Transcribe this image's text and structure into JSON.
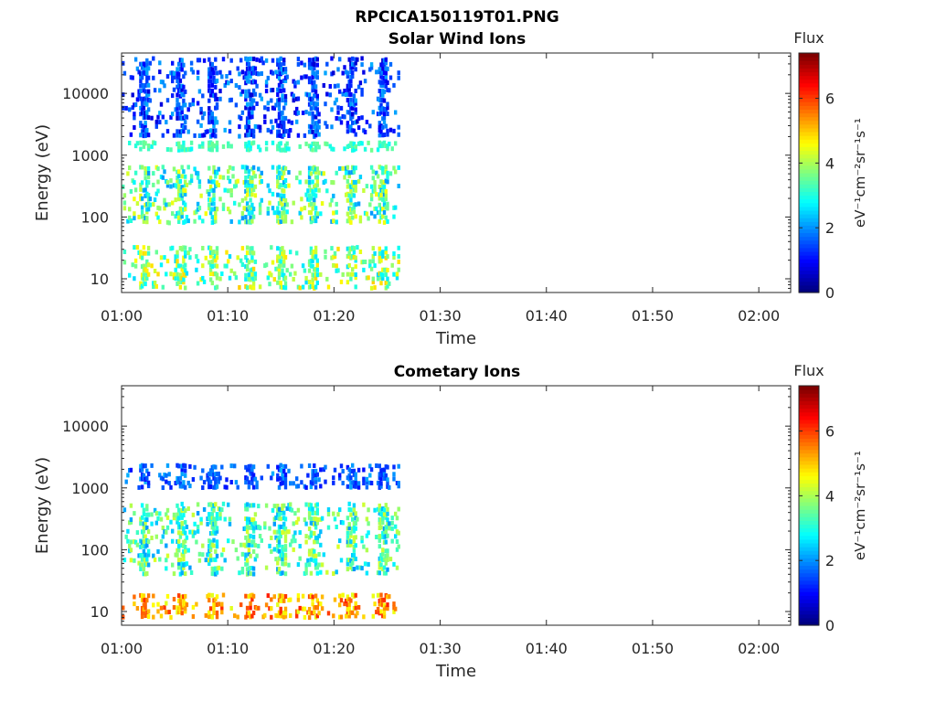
{
  "figure_title": "RPCICA150119T01.PNG",
  "colors": {
    "colormap": "jet",
    "axes": "#262626",
    "background": "#ffffff"
  },
  "chart_data": [
    {
      "type": "heatmap",
      "title": "Solar Wind Ions",
      "xlabel": "Time",
      "ylabel": "Energy (eV)",
      "yscale": "log",
      "xlim": [
        "01:00",
        "02:03"
      ],
      "ylim": [
        6,
        45000
      ],
      "x_ticks": [
        "01:00",
        "01:10",
        "01:20",
        "01:30",
        "01:40",
        "01:50",
        "02:00"
      ],
      "y_ticks": [
        "10",
        "100",
        "1000",
        "10000"
      ],
      "colorbar": {
        "label": "Flux",
        "units": "eV⁻¹cm⁻²sr⁻¹s⁻¹",
        "range": [
          0,
          7.4
        ],
        "ticks": [
          "0",
          "2",
          "4",
          "6"
        ]
      },
      "data_extent_time": [
        "01:00",
        "01:26"
      ],
      "bands": [
        {
          "name": "scan-columns",
          "times": [
            "01:02",
            "01:05.5",
            "01:08.5",
            "01:12",
            "01:15",
            "01:18",
            "01:21.5",
            "01:24.5"
          ]
        },
        {
          "name": "low-energy",
          "energy_range": [
            7,
            35
          ],
          "flux_range": [
            2.5,
            5.0
          ]
        },
        {
          "name": "mid-energy",
          "energy_range": [
            80,
            700
          ],
          "flux_range": [
            2.0,
            4.6
          ]
        },
        {
          "name": "peak-1400eV",
          "energy_range": [
            1200,
            1700
          ],
          "flux_range": [
            2.8,
            3.6
          ]
        },
        {
          "name": "high-energy",
          "energy_range": [
            2000,
            40000
          ],
          "flux_range": [
            0.6,
            2.2
          ]
        }
      ]
    },
    {
      "type": "heatmap",
      "title": "Cometary Ions",
      "xlabel": "Time",
      "ylabel": "Energy (eV)",
      "yscale": "log",
      "xlim": [
        "01:00",
        "02:03"
      ],
      "ylim": [
        6,
        45000
      ],
      "x_ticks": [
        "01:00",
        "01:10",
        "01:20",
        "01:30",
        "01:40",
        "01:50",
        "02:00"
      ],
      "y_ticks": [
        "10",
        "100",
        "1000",
        "10000"
      ],
      "colorbar": {
        "label": "Flux",
        "units": "eV⁻¹cm⁻²sr⁻¹s⁻¹",
        "range": [
          0,
          7.4
        ],
        "ticks": [
          "0",
          "2",
          "4",
          "6"
        ]
      },
      "data_extent_time": [
        "01:00",
        "01:26"
      ],
      "bands": [
        {
          "name": "scan-columns",
          "times": [
            "01:02",
            "01:05.5",
            "01:08.5",
            "01:12",
            "01:15",
            "01:18",
            "01:21.5",
            "01:24.5"
          ]
        },
        {
          "name": "low-energy",
          "energy_range": [
            8,
            20
          ],
          "flux_range": [
            4.4,
            6.3
          ]
        },
        {
          "name": "mid-energy",
          "energy_range": [
            40,
            600
          ],
          "flux_range": [
            2.0,
            4.4
          ]
        },
        {
          "name": "high-energy",
          "energy_range": [
            1000,
            2500
          ],
          "flux_range": [
            1.0,
            2.2
          ]
        }
      ]
    }
  ]
}
